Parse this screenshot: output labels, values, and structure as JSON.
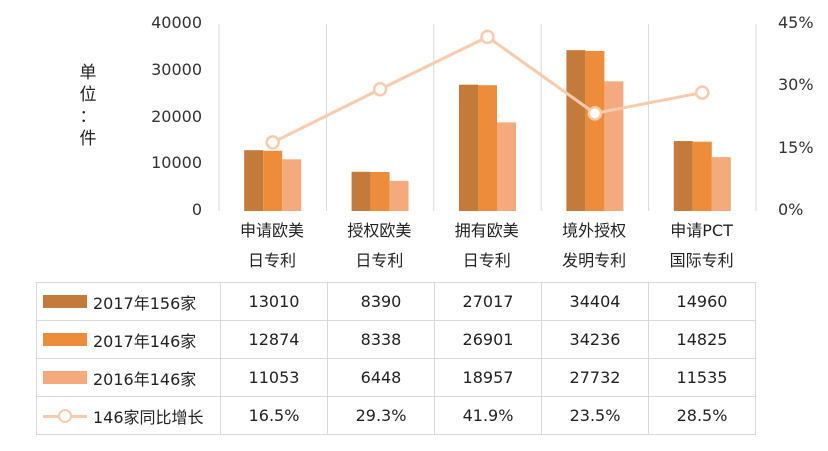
{
  "chart_data": {
    "type": "bar",
    "categories": [
      {
        "line1": "申请欧美",
        "line2": "日专利"
      },
      {
        "line1": "授权欧美",
        "line2": "日专利"
      },
      {
        "line1": "拥有欧美",
        "line2": "日专利"
      },
      {
        "line1": "境外授权",
        "line2": "发明专利"
      },
      {
        "line1": "申请PCT",
        "line2": "国际专利"
      }
    ],
    "series": [
      {
        "name": "2017年156家",
        "color": "#c47a3a",
        "values": [
          13010,
          8390,
          27017,
          34404,
          14960
        ],
        "labels": [
          "13010",
          "8390",
          "27017",
          "34404",
          "14960"
        ]
      },
      {
        "name": "2017年146家",
        "color": "#ed8d3b",
        "values": [
          12874,
          8338,
          26901,
          34236,
          14825
        ],
        "labels": [
          "12874",
          "8338",
          "26901",
          "34236",
          "14825"
        ]
      },
      {
        "name": "2016年146家",
        "color": "#f4aa7c",
        "values": [
          11053,
          6448,
          18957,
          27732,
          11535
        ],
        "labels": [
          "11053",
          "6448",
          "18957",
          "27732",
          "11535"
        ]
      }
    ],
    "line_series": {
      "name": "146家同比增长",
      "color": "#f8cbad",
      "axis": "right",
      "values": [
        16.5,
        29.3,
        41.9,
        23.5,
        28.5
      ],
      "labels": [
        "16.5%",
        "29.3%",
        "41.9%",
        "23.5%",
        "28.5%"
      ]
    },
    "ylabel": [
      "单",
      "位",
      "：",
      "件"
    ],
    "ylim": [
      0,
      40000
    ],
    "y_ticks": [
      "0",
      "10000",
      "20000",
      "30000",
      "40000"
    ],
    "y_tick_values": [
      0,
      10000,
      20000,
      30000,
      40000
    ],
    "y2lim": [
      0,
      45
    ],
    "y2_ticks": [
      "0%",
      "15%",
      "30%",
      "45%"
    ],
    "y2_tick_values": [
      0,
      15,
      30,
      45
    ],
    "grid": "vertical",
    "legend": "data-table"
  }
}
